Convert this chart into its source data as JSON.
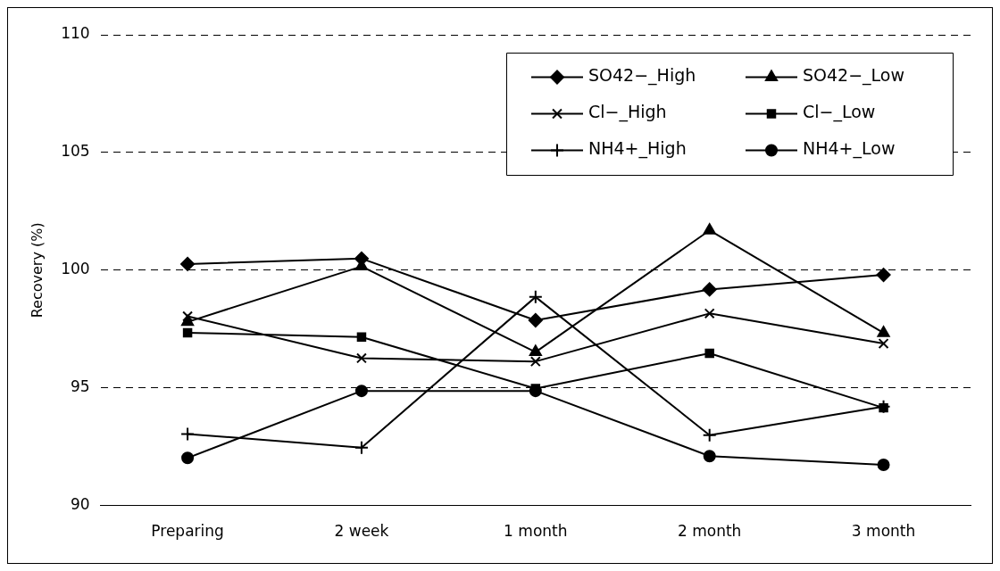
{
  "chart_data": {
    "type": "line",
    "ylabel": "Recovery (%)",
    "categories": [
      "Preparing",
      "2 week",
      "1 month",
      "2 month",
      "3 month"
    ],
    "series": [
      {
        "name": "SO42−_High",
        "color": "#000000",
        "marker": "diamond",
        "values": [
          100.26,
          100.49,
          97.87,
          99.18,
          99.8
        ]
      },
      {
        "name": "SO42−_Low",
        "color": "#000000",
        "marker": "triangle",
        "values": [
          97.8,
          100.16,
          96.52,
          101.69,
          97.33
        ]
      },
      {
        "name": "Cl−_High",
        "color": "#000000",
        "marker": "x",
        "values": [
          98.04,
          96.26,
          96.12,
          98.16,
          96.88
        ]
      },
      {
        "name": "Cl−_Low",
        "color": "#000000",
        "marker": "square",
        "values": [
          97.34,
          97.16,
          94.97,
          96.47,
          94.15
        ]
      },
      {
        "name": "NH4+_High",
        "color": "#000000",
        "marker": "cross",
        "values": [
          93.04,
          92.46,
          98.86,
          92.99,
          94.2
        ]
      },
      {
        "name": "NH4+_Low",
        "color": "#000000",
        "marker": "circle",
        "values": [
          92.02,
          94.87,
          94.87,
          92.1,
          91.73
        ]
      }
    ],
    "ylim": [
      90,
      110
    ],
    "yticks": [
      90,
      95,
      100,
      105,
      110
    ],
    "grid": "y",
    "legend": "top right"
  }
}
